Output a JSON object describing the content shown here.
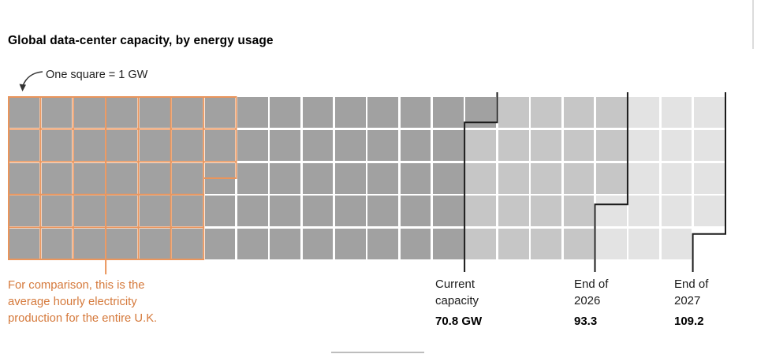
{
  "title": "Global data-center capacity, by energy usage",
  "legend_note": "One square = 1 GW",
  "comparison_note": {
    "line1": "For comparison, this is the",
    "line2": "average hourly electricity",
    "line3": "production for the entire U.K.",
    "color": "#d5793b"
  },
  "markers": [
    {
      "line1": "Current",
      "line2": "capacity",
      "value_label": "70.8 GW",
      "value_gw": 70.8
    },
    {
      "line1": "End of",
      "line2": "2026",
      "value_label": "93.3",
      "value_gw": 93.3
    },
    {
      "line1": "End of",
      "line2": "2027",
      "value_label": "109.2",
      "value_gw": 109.2
    }
  ],
  "chart_data": {
    "type": "waffle",
    "title": "Global data-center capacity, by energy usage",
    "unit": "1 square = 1 GW",
    "rows": 5,
    "cols": 22,
    "fill_order": "column-major, top to bottom",
    "series": [
      {
        "name": "Current capacity",
        "value": 70.8,
        "color": "#a1a1a1"
      },
      {
        "name": "End of 2026",
        "value": 93.3,
        "color": "#c6c6c6"
      },
      {
        "name": "End of 2027",
        "value": 109.2,
        "color": "#e3e3e3"
      }
    ],
    "comparison": {
      "name": "Average hourly electricity production for the entire U.K.",
      "value": 32.5,
      "color": "#ea955c"
    },
    "boundary_line_color": "#1a1a1a"
  }
}
